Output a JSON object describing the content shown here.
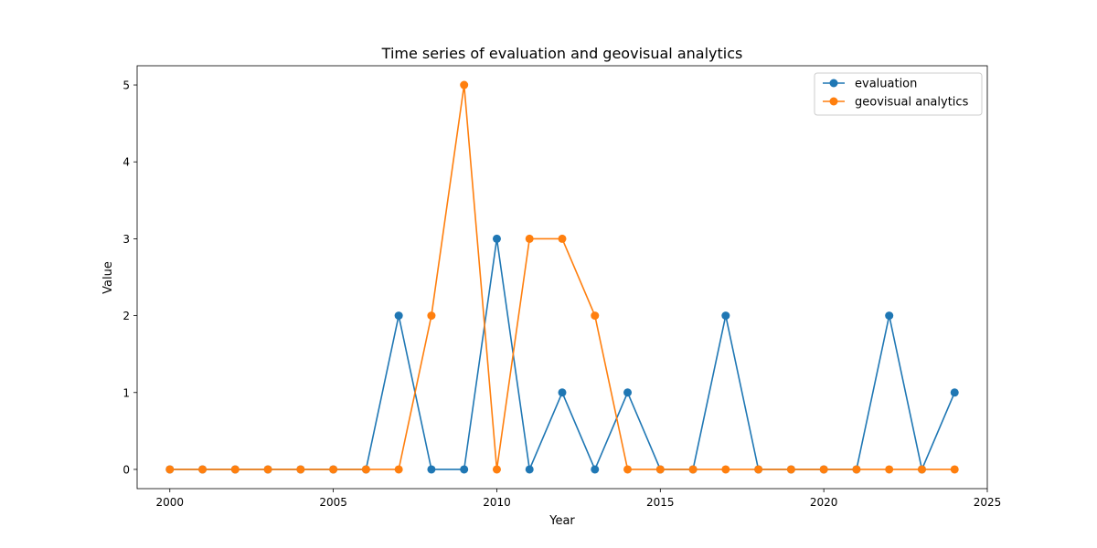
{
  "chart_data": {
    "type": "line",
    "title": "Time series of evaluation and geovisual analytics",
    "xlabel": "Year",
    "ylabel": "Value",
    "x": [
      2000,
      2001,
      2002,
      2003,
      2004,
      2005,
      2006,
      2007,
      2008,
      2009,
      2010,
      2011,
      2012,
      2013,
      2014,
      2015,
      2016,
      2017,
      2018,
      2019,
      2020,
      2021,
      2022,
      2023,
      2024
    ],
    "series": [
      {
        "name": "evaluation",
        "color": "#1f77b4",
        "values": [
          0,
          0,
          0,
          0,
          0,
          0,
          0,
          2,
          0,
          0,
          3,
          0,
          1,
          0,
          1,
          0,
          0,
          2,
          0,
          0,
          0,
          0,
          2,
          0,
          1
        ]
      },
      {
        "name": "geovisual analytics",
        "color": "#ff7f0e",
        "values": [
          0,
          0,
          0,
          0,
          0,
          0,
          0,
          0,
          2,
          5,
          0,
          3,
          3,
          2,
          0,
          0,
          0,
          0,
          0,
          0,
          0,
          0,
          0,
          0,
          0
        ]
      }
    ],
    "xlim": [
      1999,
      2025
    ],
    "ylim": [
      -0.25,
      5.25
    ],
    "xticks": [
      2000,
      2005,
      2010,
      2015,
      2020,
      2025
    ],
    "yticks": [
      0,
      1,
      2,
      3,
      4,
      5
    ],
    "grid": false,
    "legend": "top-right"
  }
}
